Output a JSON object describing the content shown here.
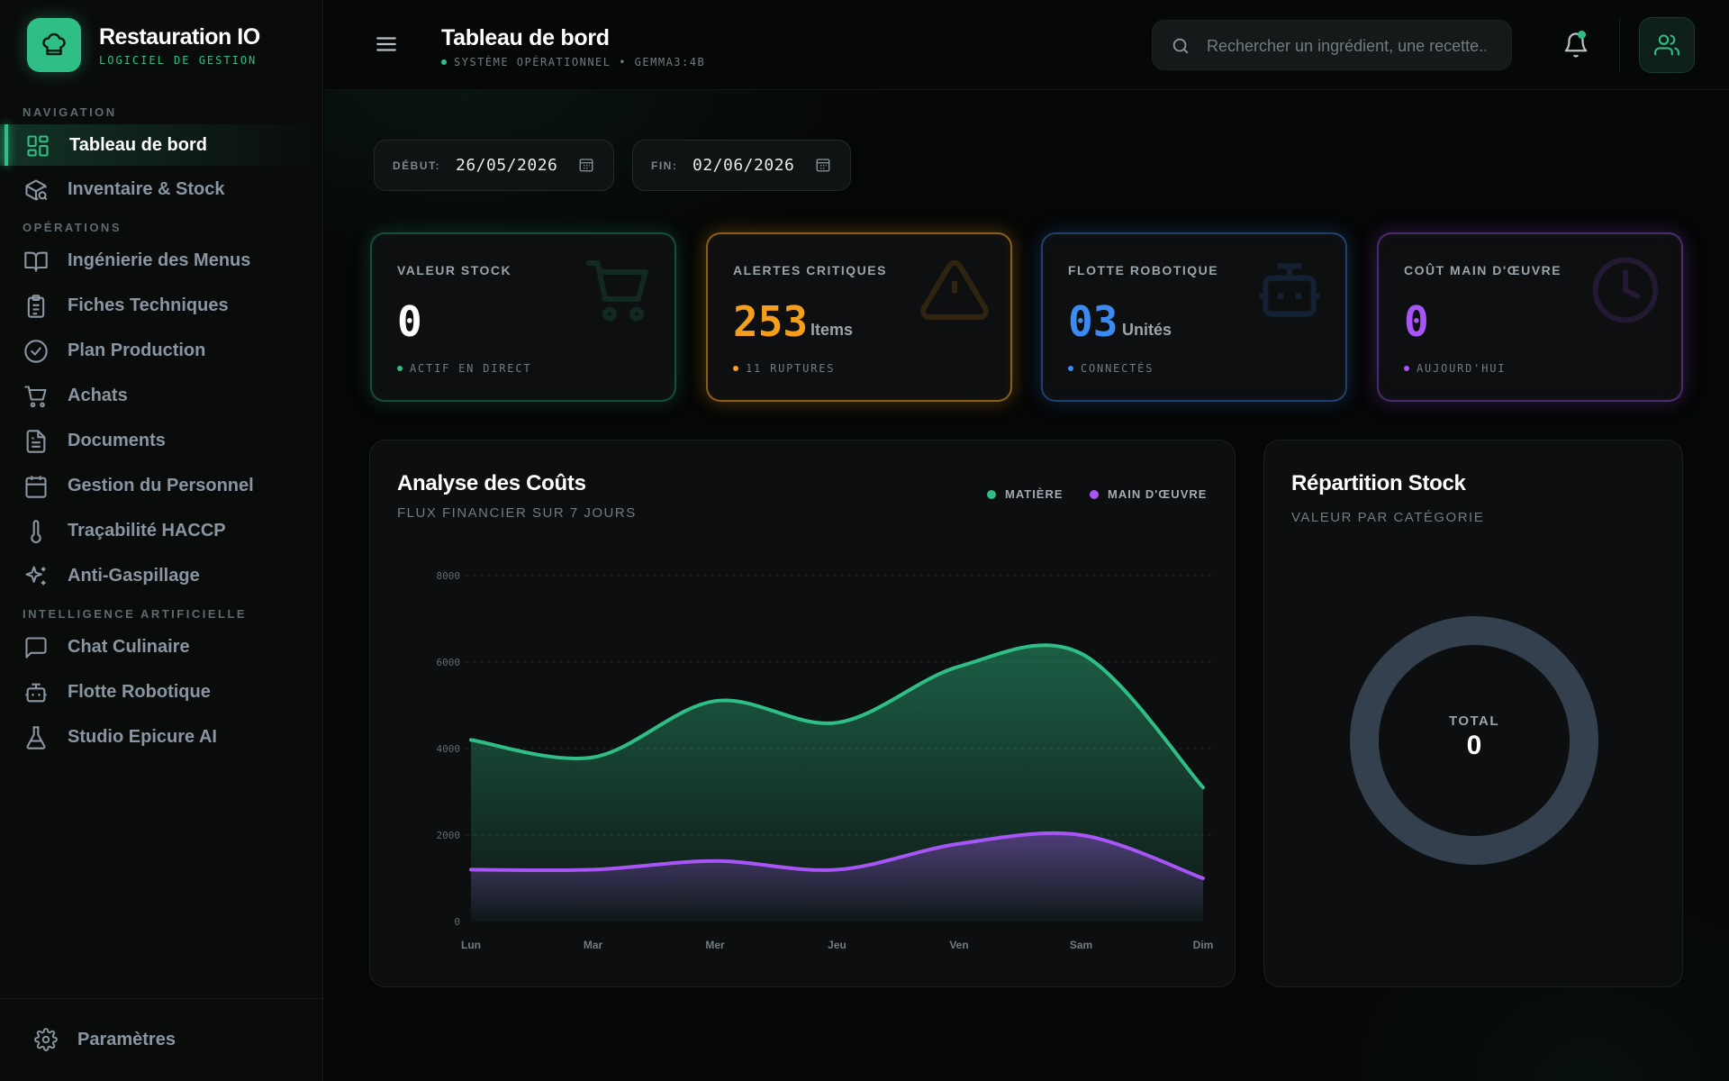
{
  "brand": {
    "title": "Restauration IO",
    "subtitle": "LOGICIEL DE GESTION"
  },
  "sidebar": {
    "sections": {
      "navigation": "NAVIGATION",
      "operations": "OPÉRATIONS",
      "ai": "INTELLIGENCE ARTIFICIELLE"
    },
    "items": [
      {
        "label": "Tableau de bord",
        "icon": "dashboard-grid-icon",
        "active": true
      },
      {
        "label": "Inventaire & Stock",
        "icon": "box-search-icon"
      },
      {
        "label": "Ingénierie des Menus",
        "icon": "open-book-icon"
      },
      {
        "label": "Fiches Techniques",
        "icon": "clipboard-icon"
      },
      {
        "label": "Plan Production",
        "icon": "check-circle-icon"
      },
      {
        "label": "Achats",
        "icon": "cart-icon"
      },
      {
        "label": "Documents",
        "icon": "document-icon"
      },
      {
        "label": "Gestion du Personnel",
        "icon": "calendar-icon"
      },
      {
        "label": "Traçabilité HACCP",
        "icon": "thermometer-icon"
      },
      {
        "label": "Anti-Gaspillage",
        "icon": "sparkles-icon"
      },
      {
        "label": "Chat Culinaire",
        "icon": "chat-bubble-icon"
      },
      {
        "label": "Flotte Robotique",
        "icon": "robot-icon"
      },
      {
        "label": "Studio Epicure AI",
        "icon": "flask-icon"
      }
    ],
    "settings_label": "Paramètres"
  },
  "header": {
    "title": "Tableau de bord",
    "status": "SYSTÈME OPÉRATIONNEL • GEMMA3:4B",
    "search_placeholder": "Rechercher un ingrédient, une recette..."
  },
  "dates": {
    "start_label": "DÉBUT:",
    "start_value": "26/05/2026",
    "end_label": "FIN:",
    "end_value": "02/06/2026"
  },
  "kpis": [
    {
      "label": "VALEUR STOCK",
      "value": "0",
      "unit": "",
      "footer": "ACTIF EN DIRECT",
      "color": "#2fbf86",
      "icon": "cart-icon"
    },
    {
      "label": "ALERTES CRITIQUES",
      "value": "253",
      "unit": "Items",
      "footer": "11 RUPTURES",
      "color": "#f59e1b",
      "icon": "warning-icon"
    },
    {
      "label": "FLOTTE ROBOTIQUE",
      "value": "03",
      "unit": "Unités",
      "footer": "CONNECTÉS",
      "color": "#3b8bf5",
      "icon": "robot-icon"
    },
    {
      "label": "COÛT MAIN D'ŒUVRE",
      "value": "0",
      "unit": "",
      "footer": "AUJOURD'HUI",
      "color": "#a855f7",
      "icon": "clock-icon"
    }
  ],
  "cost_card": {
    "title": "Analyse des Coûts",
    "subtitle": "FLUX FINANCIER SUR 7 JOURS"
  },
  "stock_card": {
    "title": "Répartition Stock",
    "subtitle": "VALEUR PAR CATÉGORIE",
    "total_label": "TOTAL",
    "total_value": "0"
  },
  "chart_data": {
    "type": "area",
    "title": "Analyse des Coûts",
    "x": [
      "Lun",
      "Mar",
      "Mer",
      "Jeu",
      "Ven",
      "Sam",
      "Dim"
    ],
    "series": [
      {
        "name": "MATIÈRE",
        "color": "#2fbf86",
        "values": [
          4200,
          3800,
          5100,
          4600,
          5900,
          6200,
          3100
        ]
      },
      {
        "name": "MAIN D'ŒUVRE",
        "color": "#a855f7",
        "values": [
          1200,
          1200,
          1400,
          1200,
          1800,
          2000,
          1000
        ]
      }
    ],
    "yticks": [
      0,
      2000,
      4000,
      6000,
      8000
    ],
    "ylim": [
      0,
      8000
    ],
    "grid": true,
    "legend_position": "top-right"
  }
}
